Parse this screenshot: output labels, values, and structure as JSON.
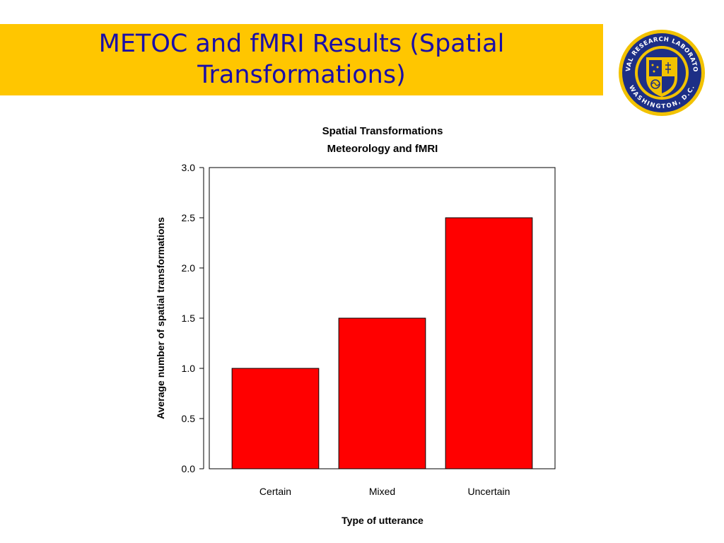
{
  "slide": {
    "title_line1": "METOC and fMRI Results (Spatial",
    "title_line2": "Transformations)"
  },
  "logo": {
    "name": "naval-research-laboratory-seal",
    "text_top": "NAVAL RESEARCH LABORATORY",
    "text_bottom": "WASHINGTON, D.C."
  },
  "colors": {
    "banner": "#ffc600",
    "title_text": "#1a0ea8",
    "bar_fill": "#ff0000"
  },
  "chart_data": {
    "type": "bar",
    "title": "Spatial Transformations",
    "subtitle": "Meteorology and fMRI",
    "xlabel": "Type of utterance",
    "ylabel": "Average number of spatial transformations",
    "categories": [
      "Certain",
      "Mixed",
      "Uncertain"
    ],
    "values": [
      1.0,
      1.5,
      2.5
    ],
    "ylim": [
      0,
      3
    ],
    "yticks": [
      0.0,
      0.5,
      1.0,
      1.5,
      2.0,
      2.5,
      3.0
    ],
    "ytick_labels": [
      "0.0",
      "0.5",
      "1.0",
      "1.5",
      "2.0",
      "2.5",
      "3.0"
    ],
    "grid": false,
    "legend": "none"
  }
}
